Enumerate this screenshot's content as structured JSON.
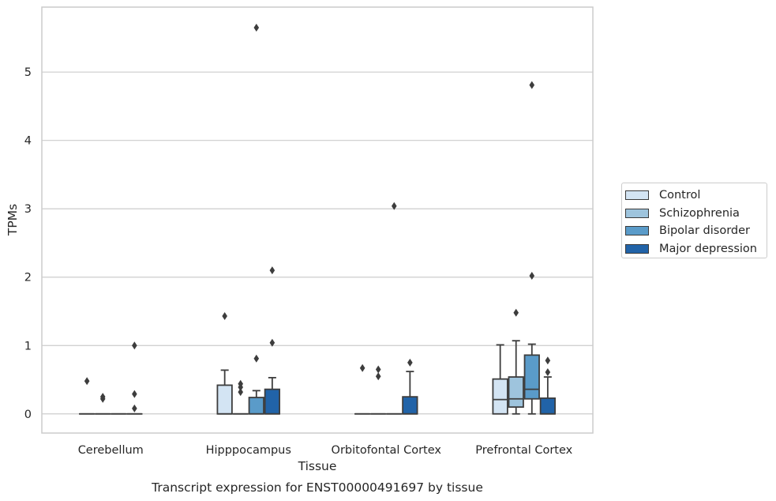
{
  "chart_data": {
    "type": "box",
    "title": "Transcript expression for ENST00000491697 by tissue",
    "xlabel": "Tissue",
    "ylabel": "TPMs",
    "ylim": [
      -0.28,
      5.95
    ],
    "yticks": [
      0,
      1,
      2,
      3,
      4,
      5
    ],
    "grid": "horizontal",
    "legend_position": "right",
    "categories": [
      "Cerebellum",
      "Hipppocampus",
      "Orbitofontal Cortex",
      "Prefrontal Cortex"
    ],
    "series": [
      {
        "name": "Control",
        "color": "#d3e4f3",
        "boxes": [
          {
            "q1": 0,
            "median": 0,
            "q3": 0,
            "whisker_low": 0,
            "whisker_high": 0,
            "outliers": [
              0.48
            ]
          },
          {
            "q1": 0,
            "median": 0,
            "q3": 0.42,
            "whisker_low": 0,
            "whisker_high": 0.64,
            "outliers": [
              1.43
            ]
          },
          {
            "q1": 0,
            "median": 0,
            "q3": 0,
            "whisker_low": 0,
            "whisker_high": 0,
            "outliers": [
              0.67
            ]
          },
          {
            "q1": 0,
            "median": 0.21,
            "q3": 0.51,
            "whisker_low": 0,
            "whisker_high": 1.01,
            "outliers": []
          }
        ]
      },
      {
        "name": "Schizophrenia",
        "color": "#9ec4dd",
        "boxes": [
          {
            "q1": 0,
            "median": 0,
            "q3": 0,
            "whisker_low": 0,
            "whisker_high": 0,
            "outliers": [
              0.22,
              0.25
            ]
          },
          {
            "q1": 0,
            "median": 0,
            "q3": 0,
            "whisker_low": 0,
            "whisker_high": 0,
            "outliers": [
              0.32,
              0.39,
              0.44
            ]
          },
          {
            "q1": 0,
            "median": 0,
            "q3": 0,
            "whisker_low": 0,
            "whisker_high": 0,
            "outliers": [
              0.55,
              0.65
            ]
          },
          {
            "q1": 0.1,
            "median": 0.22,
            "q3": 0.54,
            "whisker_low": 0,
            "whisker_high": 1.07,
            "outliers": [
              1.48
            ]
          }
        ]
      },
      {
        "name": "Bipolar disorder",
        "color": "#5a9bc9",
        "boxes": [
          {
            "q1": 0,
            "median": 0,
            "q3": 0,
            "whisker_low": 0,
            "whisker_high": 0,
            "outliers": []
          },
          {
            "q1": 0,
            "median": 0,
            "q3": 0.24,
            "whisker_low": 0,
            "whisker_high": 0.34,
            "outliers": [
              0.81,
              5.65
            ]
          },
          {
            "q1": 0,
            "median": 0,
            "q3": 0,
            "whisker_low": 0,
            "whisker_high": 0,
            "outliers": [
              3.04
            ]
          },
          {
            "q1": 0.22,
            "median": 0.36,
            "q3": 0.86,
            "whisker_low": 0,
            "whisker_high": 1.02,
            "outliers": [
              2.02,
              4.81
            ]
          }
        ]
      },
      {
        "name": "Major depression",
        "color": "#2163a8",
        "boxes": [
          {
            "q1": 0,
            "median": 0,
            "q3": 0,
            "whisker_low": 0,
            "whisker_high": 0,
            "outliers": [
              0.08,
              0.29,
              1.0
            ]
          },
          {
            "q1": 0,
            "median": 0,
            "q3": 0.36,
            "whisker_low": 0,
            "whisker_high": 0.53,
            "outliers": [
              1.04,
              2.1
            ]
          },
          {
            "q1": 0,
            "median": 0,
            "q3": 0.25,
            "whisker_low": 0,
            "whisker_high": 0.62,
            "outliers": [
              0.75
            ]
          },
          {
            "q1": 0,
            "median": 0,
            "q3": 0.23,
            "whisker_low": 0,
            "whisker_high": 0.54,
            "outliers": [
              0.61,
              0.78
            ]
          }
        ]
      }
    ]
  }
}
